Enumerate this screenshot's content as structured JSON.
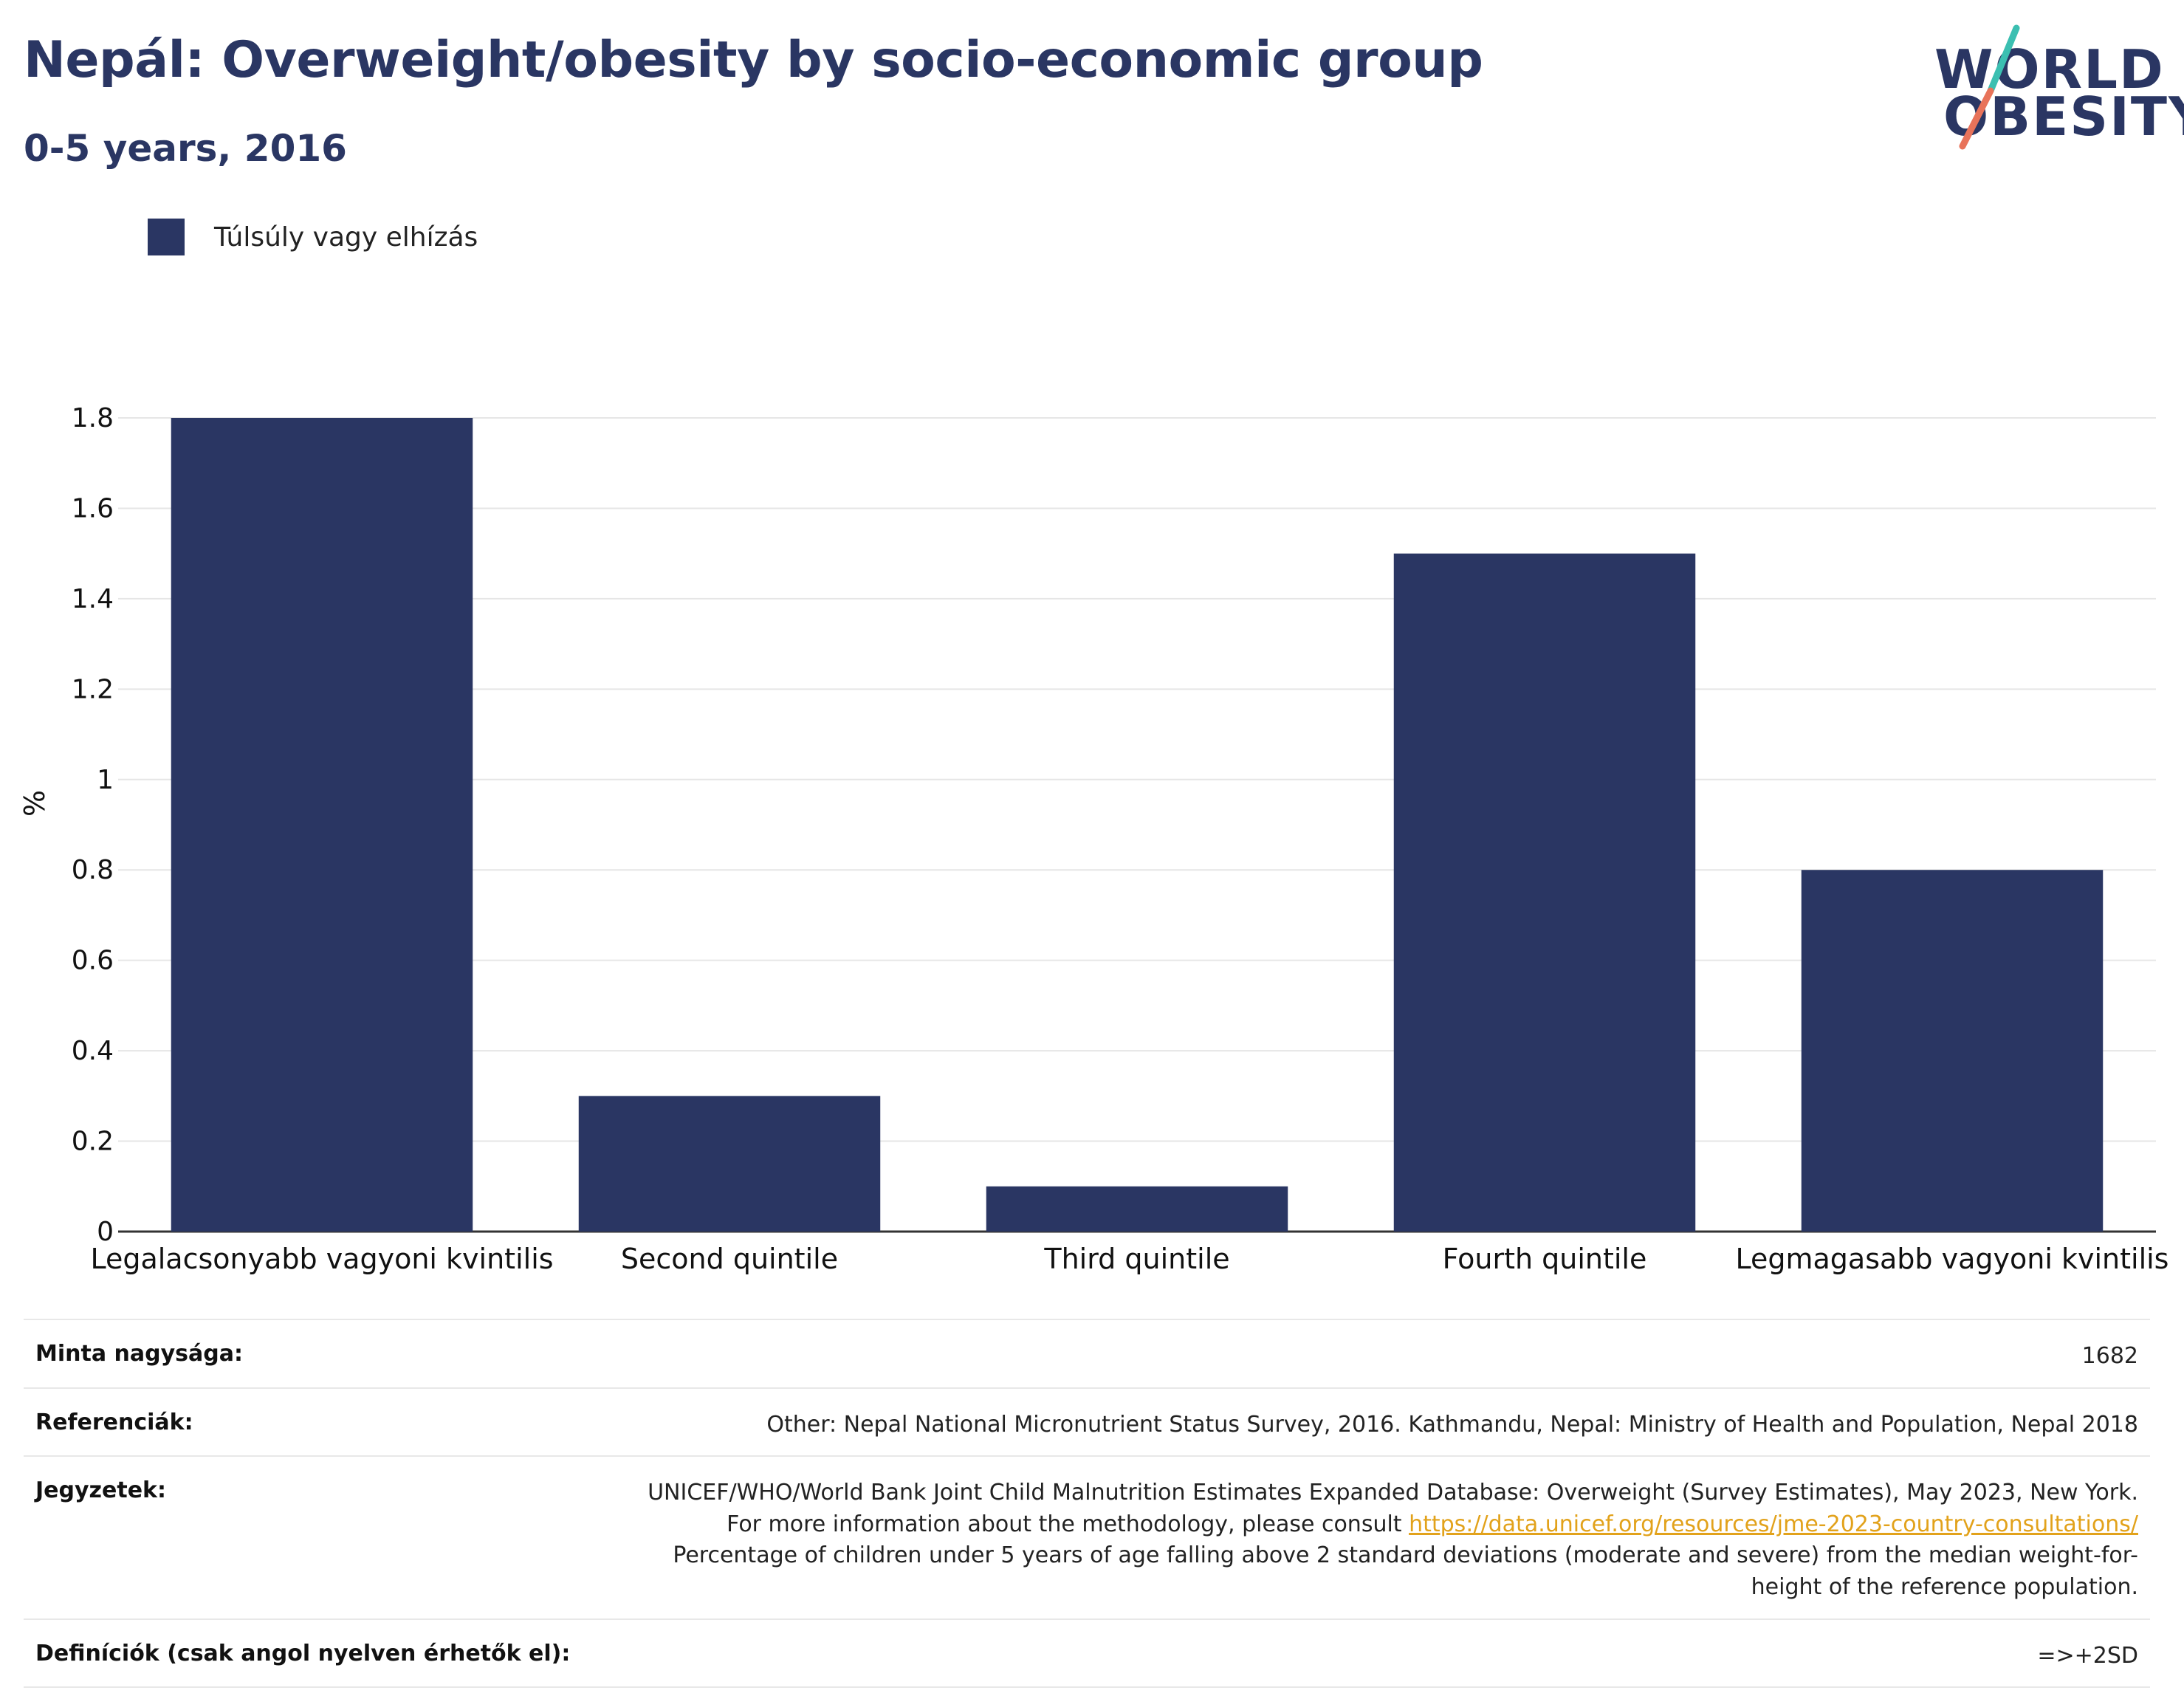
{
  "header": {
    "title": "Nepál: Overweight/obesity by socio-economic group",
    "subtitle": "0-5 years, 2016"
  },
  "logo": {
    "line1": "WORLD",
    "line2": "OBESITY",
    "colors": {
      "teal": "#3bbfb1",
      "coral": "#e8735a",
      "navy": "#2a3663"
    }
  },
  "legend": {
    "label": "Túlsúly vagy elhízás",
    "color": "#2a3663"
  },
  "chart_data": {
    "type": "bar",
    "title": "Nepál: Overweight/obesity by socio-economic group",
    "subtitle": "0-5 years, 2016",
    "categories": [
      "Legalacsonyabb vagyoni kvintilis",
      "Second quintile",
      "Third quintile",
      "Fourth quintile",
      "Legmagasabb vagyoni kvintilis"
    ],
    "series": [
      {
        "name": "Túlsúly vagy elhízás",
        "values": [
          1.8,
          0.3,
          0.1,
          1.5,
          0.8
        ],
        "color": "#2a3663"
      }
    ],
    "xlabel": "",
    "ylabel": "%",
    "ylim": [
      0,
      1.8
    ],
    "yticks": [
      0,
      0.2,
      0.4,
      0.6,
      0.8,
      1,
      1.2,
      1.4,
      1.6,
      1.8
    ],
    "ytick_labels": [
      "0",
      "0.2",
      "0.4",
      "0.6",
      "0.8",
      "1",
      "1.2",
      "1.4",
      "1.6",
      "1.8"
    ],
    "grid": true,
    "legend_position": "top-left"
  },
  "info": {
    "sample_label": "Minta nagysága:",
    "sample_value": "1682",
    "ref_label": "Referenciák:",
    "ref_value": "Other: Nepal National Micronutrient Status Survey, 2016. Kathmandu, Nepal: Ministry of Health and Population, Nepal 2018",
    "notes_label": "Jegyzetek:",
    "notes_text1": "UNICEF/WHO/World Bank Joint Child Malnutrition Estimates Expanded Database: Overweight (Survey Estimates), May 2023, New York. For more information about the methodology, please consult ",
    "notes_link": "https://data.unicef.org/resources/jme-2023-country-consultations/",
    "notes_text2": "Percentage of children under 5 years of age falling above 2 standard deviations (moderate and severe) from the median weight-for-height of the reference population.",
    "def_label": "Definíciók (csak angol nyelven érhetők el):",
    "def_value": "=>+2SD"
  }
}
